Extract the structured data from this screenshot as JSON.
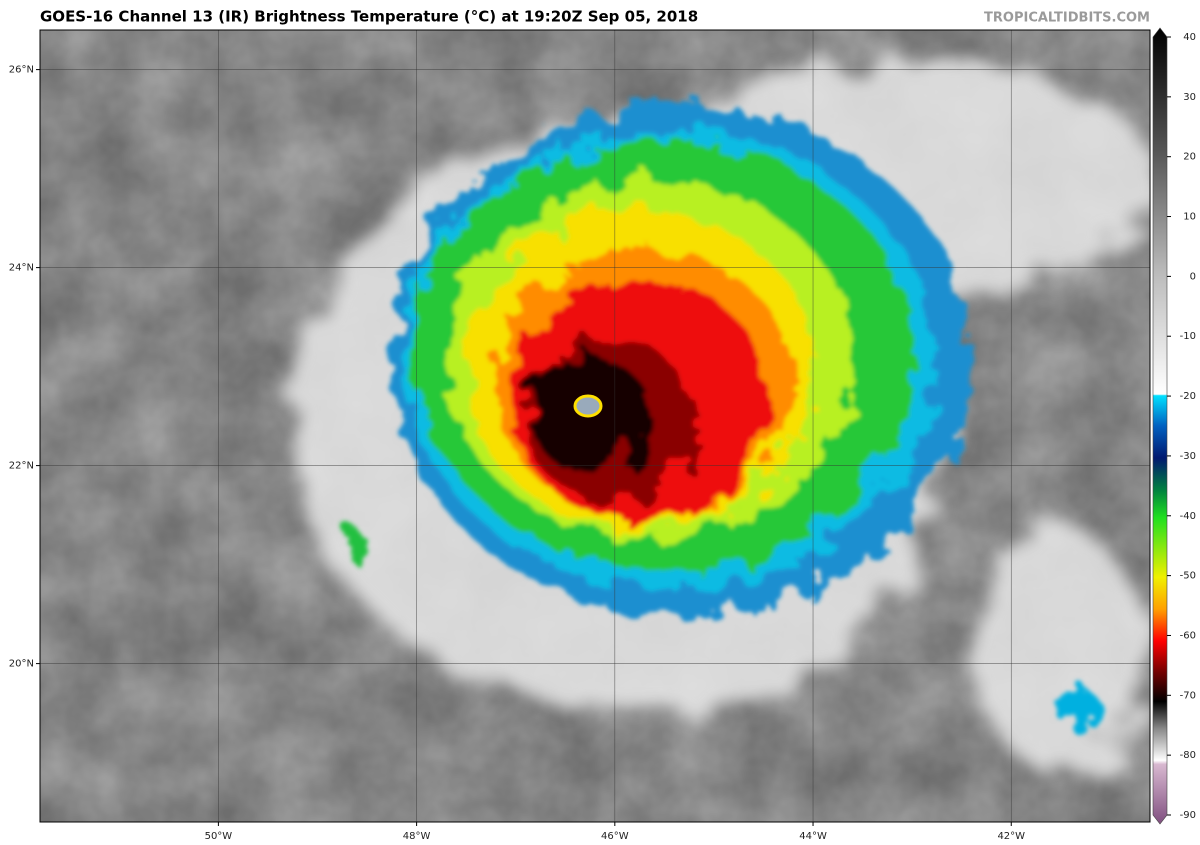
{
  "header": {
    "title": "GOES-16 Channel 13 (IR) Brightness Temperature (°C) at 19:20Z Sep 05, 2018",
    "credit": "TROPICALTIDBITS.COM"
  },
  "map": {
    "lon_range": [
      -51.8,
      -40.6
    ],
    "lat_range": [
      18.4,
      26.4
    ],
    "lon_ticks": [
      {
        "value": -50,
        "label": "50°W"
      },
      {
        "value": -48,
        "label": "48°W"
      },
      {
        "value": -46,
        "label": "46°W"
      },
      {
        "value": -44,
        "label": "44°W"
      },
      {
        "value": -42,
        "label": "42°W"
      }
    ],
    "lat_ticks": [
      {
        "value": 26,
        "label": "26°N"
      },
      {
        "value": 24,
        "label": "24°N"
      },
      {
        "value": 22,
        "label": "22°N"
      },
      {
        "value": 20,
        "label": "20°N"
      }
    ]
  },
  "colorbar": {
    "range": [
      -90,
      40
    ],
    "ticks": [
      40,
      30,
      20,
      10,
      0,
      -10,
      -20,
      -30,
      -40,
      -50,
      -60,
      -70,
      -80,
      -90
    ]
  }
}
